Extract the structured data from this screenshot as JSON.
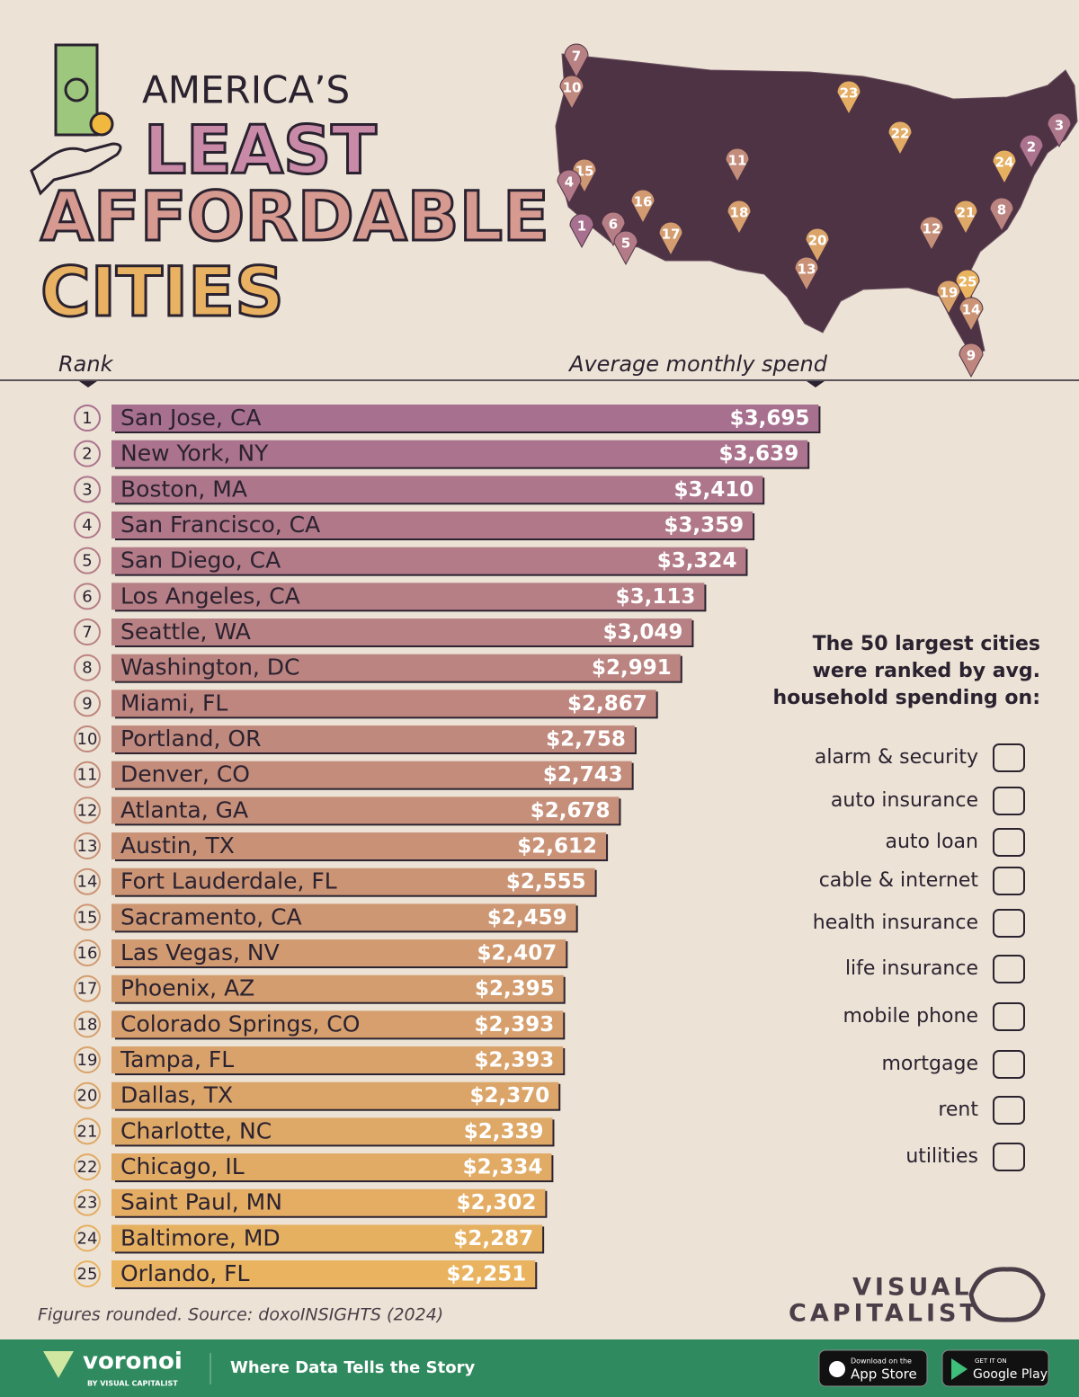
{
  "header": {
    "title_lines": [
      "AMERICA’S",
      "LEAST",
      "AFFORDABLE",
      "CITIES"
    ]
  },
  "map_pins": [
    7,
    10,
    23,
    3,
    2,
    22,
    24,
    15,
    4,
    11,
    16,
    8,
    21,
    1,
    6,
    5,
    18,
    17,
    12,
    20,
    13,
    25,
    19,
    14,
    9
  ],
  "chart_data": {
    "type": "bar",
    "orientation": "horizontal",
    "rank_label": "Rank",
    "x_label": "Average monthly spend",
    "ranks": [
      1,
      2,
      3,
      4,
      5,
      6,
      7,
      8,
      9,
      10,
      11,
      12,
      13,
      14,
      15,
      16,
      17,
      18,
      19,
      20,
      21,
      22,
      23,
      24,
      25
    ],
    "categories": [
      "San Jose, CA",
      "New York, NY",
      "Boston, MA",
      "San Francisco, CA",
      "San Diego, CA",
      "Los Angeles, CA",
      "Seattle, WA",
      "Washington, DC",
      "Miami, FL",
      "Portland, OR",
      "Denver, CO",
      "Atlanta, GA",
      "Austin, TX",
      "Fort Lauderdale, FL",
      "Sacramento, CA",
      "Las Vegas, NV",
      "Phoenix, AZ",
      "Colorado Springs, CO",
      "Tampa, FL",
      "Dallas, TX",
      "Charlotte, NC",
      "Chicago, IL",
      "Saint Paul, MN",
      "Baltimore, MD",
      "Orlando, FL"
    ],
    "values": [
      3695,
      3639,
      3410,
      3359,
      3324,
      3113,
      3049,
      2991,
      2867,
      2758,
      2743,
      2678,
      2612,
      2555,
      2459,
      2407,
      2395,
      2393,
      2393,
      2370,
      2339,
      2334,
      2302,
      2287,
      2251
    ],
    "value_labels": [
      "$3,695",
      "$3,639",
      "$3,410",
      "$3,359",
      "$3,324",
      "$3,113",
      "$3,049",
      "$2,991",
      "$2,867",
      "$2,758",
      "$2,743",
      "$2,678",
      "$2,612",
      "$2,555",
      "$2,459",
      "$2,407",
      "$2,395",
      "$2,393",
      "$2,393",
      "$2,370",
      "$2,339",
      "$2,334",
      "$2,302",
      "$2,287",
      "$2,251"
    ],
    "xlim": [
      0,
      4000
    ],
    "color_start": "#a8708f",
    "color_end": "#e9b35f"
  },
  "note": {
    "lines": [
      "The 50 largest cities",
      "were ranked by avg.",
      "household spending on:"
    ],
    "items": [
      "alarm & security",
      "auto insurance",
      "auto loan",
      "cable & internet",
      "health insurance",
      "life insurance",
      "mobile phone",
      "mortgage",
      "rent",
      "utilities"
    ]
  },
  "source": "Figures rounded. Source: doxoINSIGHTS (2024)",
  "brand": [
    "VISUAL",
    "CAPITALIST"
  ],
  "footer": {
    "logo": "voronoi",
    "logo_sub": "BY VISUAL CAPITALIST",
    "tagline": "Where Data Tells the Story",
    "apple_small": "Download on the",
    "apple": "App Store",
    "google_small": "GET IT ON",
    "google": "Google Play"
  }
}
